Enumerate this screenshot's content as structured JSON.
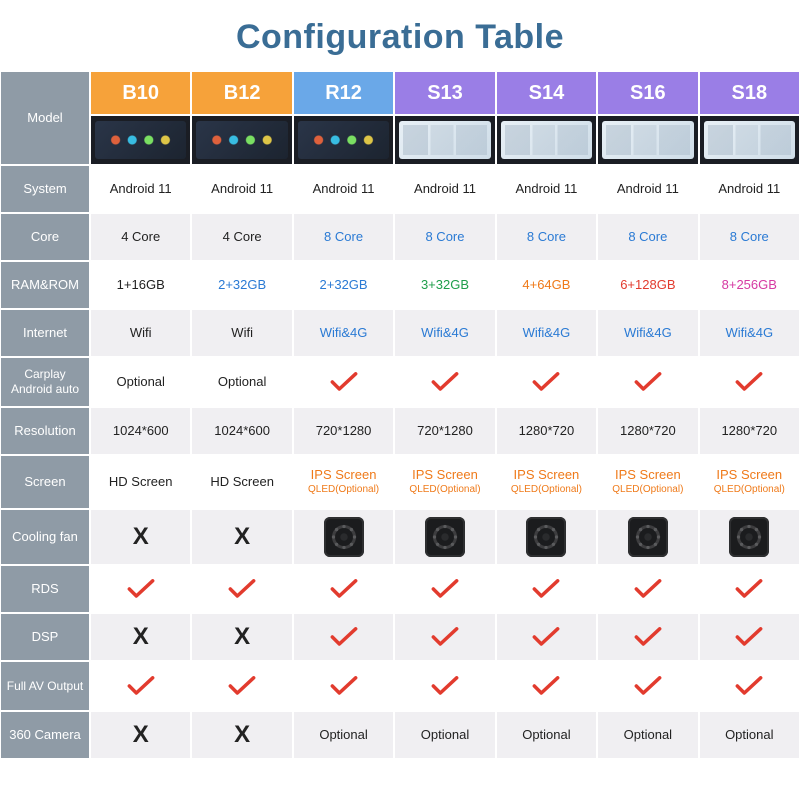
{
  "title": "Configuration Table",
  "table": {
    "row_label_bg": "#8f9ba6",
    "row_label_color": "#ffffff",
    "stripe_even_bg": "#ffffff",
    "stripe_odd_bg": "#f0eff2",
    "check_color": "#e23b2e",
    "x_color": "#222222",
    "title_color": "#3a6d95"
  },
  "models": [
    {
      "id": "B10",
      "label": "B10",
      "header_bg": "#f6a23a",
      "screen": "dark"
    },
    {
      "id": "B12",
      "label": "B12",
      "header_bg": "#f6a23a",
      "screen": "dark"
    },
    {
      "id": "R12",
      "label": "R12",
      "header_bg": "#6aa8e8",
      "screen": "dark"
    },
    {
      "id": "S13",
      "label": "S13",
      "header_bg": "#9a7ee6",
      "screen": "light"
    },
    {
      "id": "S14",
      "label": "S14",
      "header_bg": "#9a7ee6",
      "screen": "light"
    },
    {
      "id": "S16",
      "label": "S16",
      "header_bg": "#9a7ee6",
      "screen": "light"
    },
    {
      "id": "S18",
      "label": "S18",
      "header_bg": "#9a7ee6",
      "screen": "light"
    }
  ],
  "rows": [
    {
      "key": "model",
      "label": "Model",
      "type": "header"
    },
    {
      "key": "img",
      "label": "",
      "type": "image"
    },
    {
      "key": "system",
      "label": "System",
      "type": "text",
      "values": [
        {
          "t": "Android 11",
          "c": "black"
        },
        {
          "t": "Android 11",
          "c": "black"
        },
        {
          "t": "Android 11",
          "c": "black"
        },
        {
          "t": "Android 11",
          "c": "black"
        },
        {
          "t": "Android 11",
          "c": "black"
        },
        {
          "t": "Android 11",
          "c": "black"
        },
        {
          "t": "Android 11",
          "c": "black"
        }
      ]
    },
    {
      "key": "core",
      "label": "Core",
      "type": "text",
      "values": [
        {
          "t": "4 Core",
          "c": "black"
        },
        {
          "t": "4 Core",
          "c": "black"
        },
        {
          "t": "8 Core",
          "c": "blue"
        },
        {
          "t": "8 Core",
          "c": "blue"
        },
        {
          "t": "8 Core",
          "c": "blue"
        },
        {
          "t": "8 Core",
          "c": "blue"
        },
        {
          "t": "8 Core",
          "c": "blue"
        }
      ]
    },
    {
      "key": "ramrom",
      "label": "RAM&ROM",
      "type": "text",
      "values": [
        {
          "t": "1+16GB",
          "c": "black"
        },
        {
          "t": "2+32GB",
          "c": "blue"
        },
        {
          "t": "2+32GB",
          "c": "blue"
        },
        {
          "t": "3+32GB",
          "c": "green"
        },
        {
          "t": "4+64GB",
          "c": "orange"
        },
        {
          "t": "6+128GB",
          "c": "red"
        },
        {
          "t": "8+256GB",
          "c": "magenta"
        }
      ]
    },
    {
      "key": "internet",
      "label": "Internet",
      "type": "text",
      "values": [
        {
          "t": "Wifi",
          "c": "black"
        },
        {
          "t": "Wifi",
          "c": "black"
        },
        {
          "t": "Wifi&4G",
          "c": "blue"
        },
        {
          "t": "Wifi&4G",
          "c": "blue"
        },
        {
          "t": "Wifi&4G",
          "c": "blue"
        },
        {
          "t": "Wifi&4G",
          "c": "blue"
        },
        {
          "t": "Wifi&4G",
          "c": "blue"
        }
      ]
    },
    {
      "key": "carplay",
      "label": "Carplay Android auto",
      "type": "mixed",
      "values": [
        {
          "kind": "text",
          "t": "Optional",
          "c": "black"
        },
        {
          "kind": "text",
          "t": "Optional",
          "c": "black"
        },
        {
          "kind": "check"
        },
        {
          "kind": "check"
        },
        {
          "kind": "check"
        },
        {
          "kind": "check"
        },
        {
          "kind": "check"
        }
      ]
    },
    {
      "key": "resolution",
      "label": "Resolution",
      "type": "text",
      "values": [
        {
          "t": "1024*600",
          "c": "black"
        },
        {
          "t": "1024*600",
          "c": "black"
        },
        {
          "t": "720*1280",
          "c": "black"
        },
        {
          "t": "720*1280",
          "c": "black"
        },
        {
          "t": "1280*720",
          "c": "black"
        },
        {
          "t": "1280*720",
          "c": "black"
        },
        {
          "t": "1280*720",
          "c": "black"
        }
      ]
    },
    {
      "key": "screen",
      "label": "Screen",
      "type": "screen",
      "values": [
        {
          "kind": "text",
          "t": "HD Screen",
          "c": "black"
        },
        {
          "kind": "text",
          "t": "HD Screen",
          "c": "black"
        },
        {
          "kind": "ips",
          "main": "IPS Screen",
          "sub": "QLED(Optional)"
        },
        {
          "kind": "ips",
          "main": "IPS Screen",
          "sub": "QLED(Optional)"
        },
        {
          "kind": "ips",
          "main": "IPS Screen",
          "sub": "QLED(Optional)"
        },
        {
          "kind": "ips",
          "main": "IPS Screen",
          "sub": "QLED(Optional)"
        },
        {
          "kind": "ips",
          "main": "IPS Screen",
          "sub": "QLED(Optional)"
        }
      ]
    },
    {
      "key": "fan",
      "label": "Cooling fan",
      "type": "fan",
      "values": [
        {
          "kind": "x"
        },
        {
          "kind": "x"
        },
        {
          "kind": "fan"
        },
        {
          "kind": "fan"
        },
        {
          "kind": "fan"
        },
        {
          "kind": "fan"
        },
        {
          "kind": "fan"
        }
      ]
    },
    {
      "key": "rds",
      "label": "RDS",
      "type": "mixed",
      "values": [
        {
          "kind": "check"
        },
        {
          "kind": "check"
        },
        {
          "kind": "check"
        },
        {
          "kind": "check"
        },
        {
          "kind": "check"
        },
        {
          "kind": "check"
        },
        {
          "kind": "check"
        }
      ]
    },
    {
      "key": "dsp",
      "label": "DSP",
      "type": "mixed",
      "values": [
        {
          "kind": "x"
        },
        {
          "kind": "x"
        },
        {
          "kind": "check"
        },
        {
          "kind": "check"
        },
        {
          "kind": "check"
        },
        {
          "kind": "check"
        },
        {
          "kind": "check"
        }
      ]
    },
    {
      "key": "av",
      "label": "Full AV Output",
      "type": "mixed",
      "values": [
        {
          "kind": "check"
        },
        {
          "kind": "check"
        },
        {
          "kind": "check"
        },
        {
          "kind": "check"
        },
        {
          "kind": "check"
        },
        {
          "kind": "check"
        },
        {
          "kind": "check"
        }
      ]
    },
    {
      "key": "cam",
      "label": "360 Camera",
      "type": "mixed",
      "values": [
        {
          "kind": "x"
        },
        {
          "kind": "x"
        },
        {
          "kind": "text",
          "t": "Optional",
          "c": "black"
        },
        {
          "kind": "text",
          "t": "Optional",
          "c": "black"
        },
        {
          "kind": "text",
          "t": "Optional",
          "c": "black"
        },
        {
          "kind": "text",
          "t": "Optional",
          "c": "black"
        },
        {
          "kind": "text",
          "t": "Optional",
          "c": "black"
        }
      ]
    }
  ],
  "row_heights": {
    "model": 44,
    "img": 50,
    "system": 48,
    "core": 48,
    "ramrom": 48,
    "internet": 48,
    "carplay": 50,
    "resolution": 48,
    "screen": 54,
    "fan": 56,
    "rds": 48,
    "dsp": 48,
    "av": 50,
    "cam": 48
  }
}
